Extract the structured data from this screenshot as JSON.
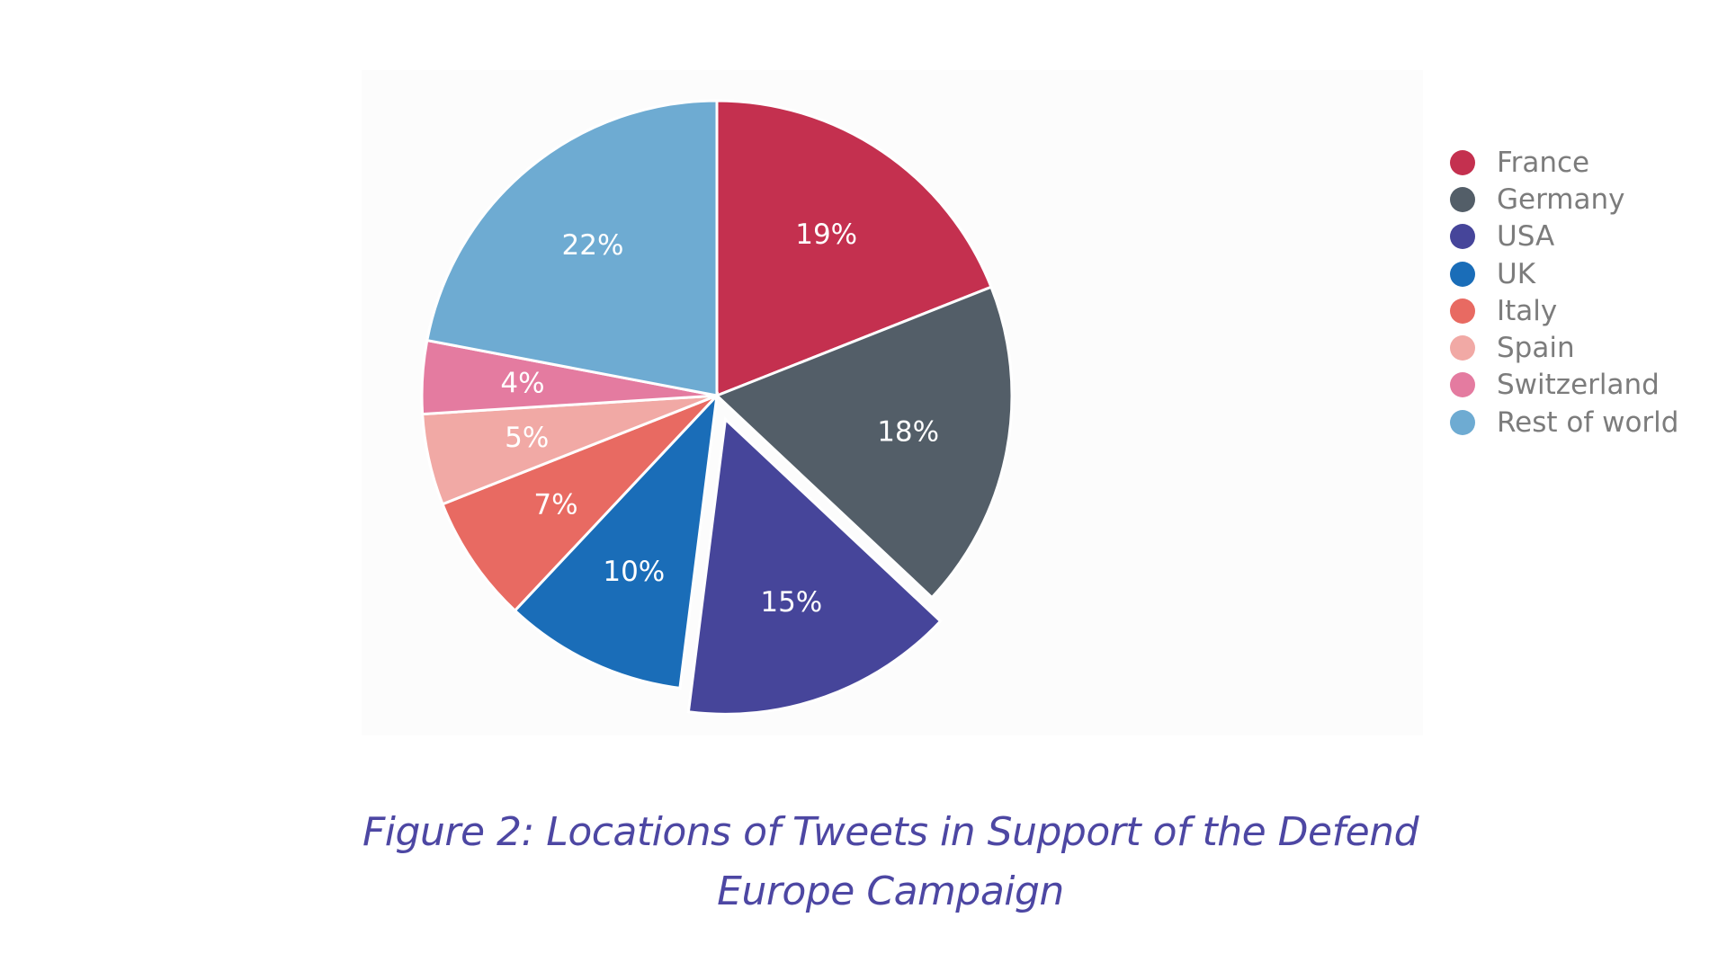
{
  "caption": "Figure 2: Locations of Tweets in Support of the Defend Europe Campaign",
  "chart_data": {
    "type": "pie",
    "title": "",
    "categories": [
      "France",
      "Germany",
      "USA",
      "UK",
      "Italy",
      "Spain",
      "Switzerland",
      "Rest of world"
    ],
    "values": [
      19,
      18,
      15,
      10,
      7,
      5,
      4,
      22
    ],
    "labels": [
      "19%",
      "18%",
      "15%",
      "10%",
      "7%",
      "5%",
      "4%",
      "22%"
    ],
    "colors": [
      "#c4304f",
      "#535e68",
      "#46459a",
      "#1a6db8",
      "#e86a62",
      "#f1a9a5",
      "#e47ba0",
      "#6eabd2"
    ],
    "exploded": [
      "USA"
    ],
    "start_angle_deg": 0,
    "direction": "clockwise",
    "legend": {
      "position": "top-right",
      "entries": [
        "France",
        "Germany",
        "USA",
        "UK",
        "Italy",
        "Spain",
        "Switzerland",
        "Rest of world"
      ]
    }
  }
}
